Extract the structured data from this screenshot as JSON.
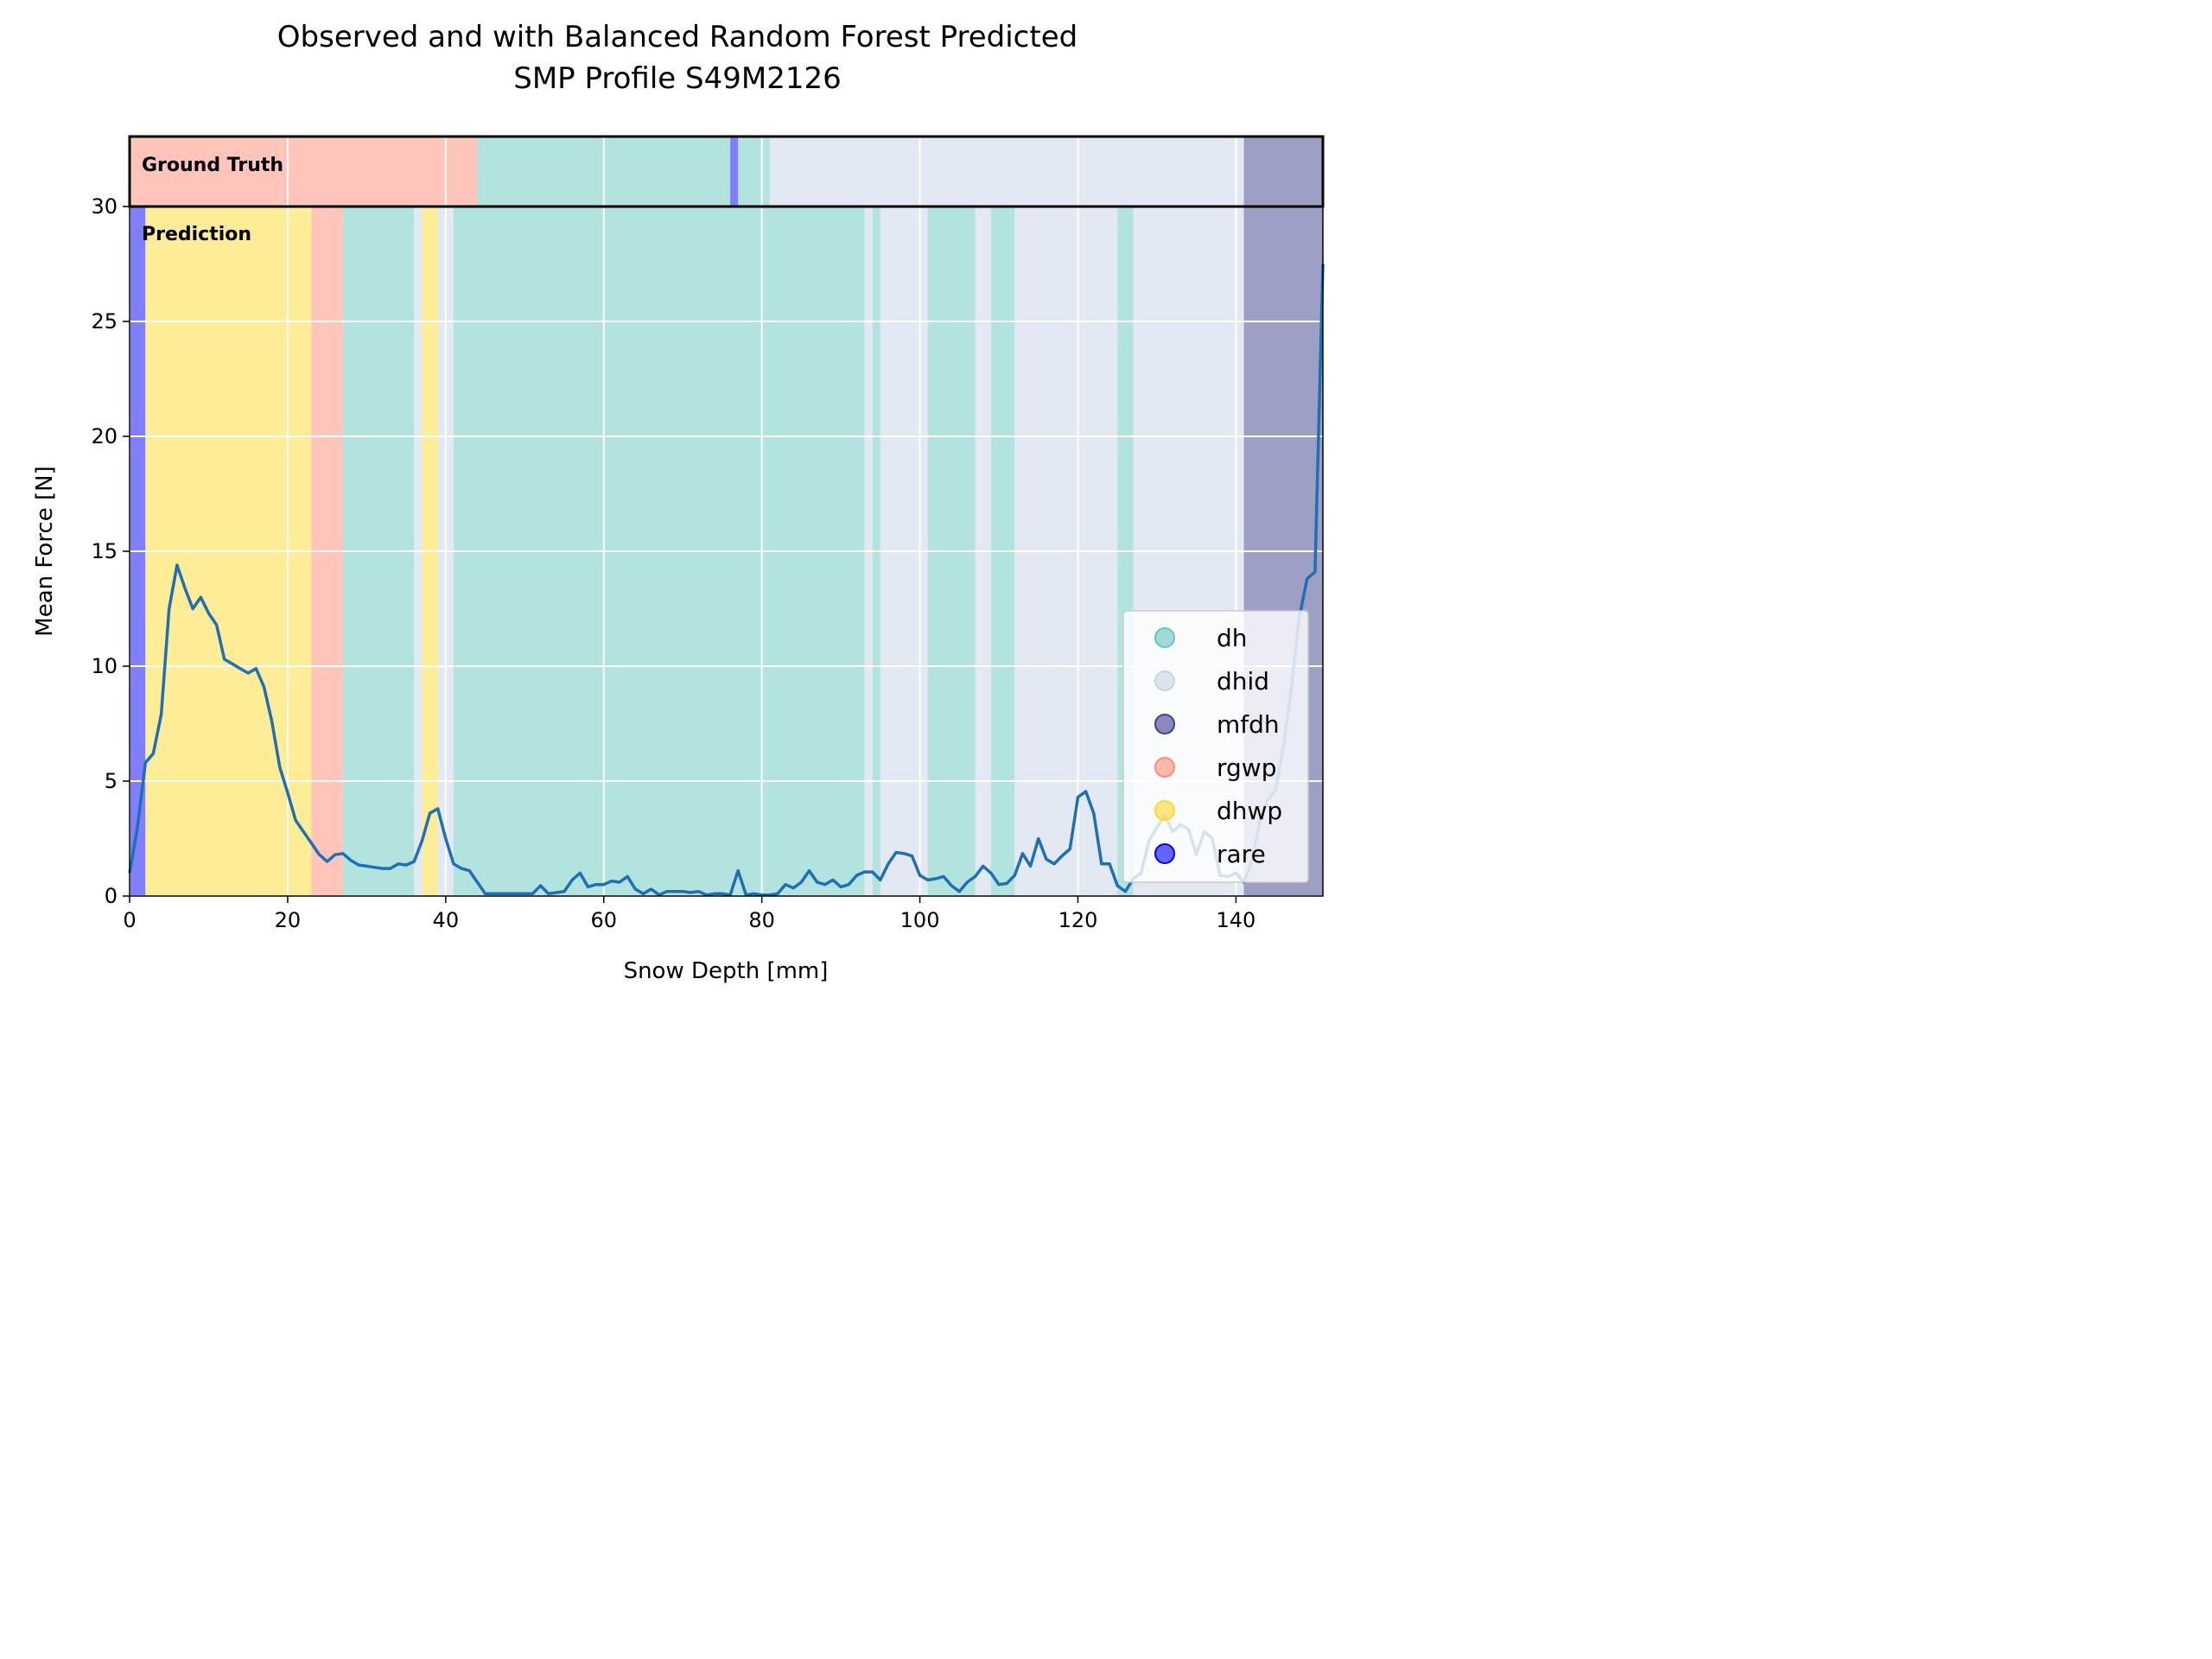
{
  "chart_data": {
    "type": "line",
    "title_line1": "Observed and with Balanced Random Forest Predicted",
    "title_line2": "SMP Profile S49M2126",
    "xlabel": "Snow Depth [mm]",
    "ylabel": "Mean Force [N]",
    "xlim": [
      0,
      151
    ],
    "ylim": [
      0,
      30
    ],
    "xticks": [
      0,
      20,
      40,
      60,
      80,
      100,
      120,
      140
    ],
    "yticks": [
      0,
      5,
      10,
      15,
      20,
      25,
      30
    ],
    "grid": true,
    "ground_truth_label": "Ground Truth",
    "prediction_label": "Prediction",
    "classes": [
      {
        "name": "dh",
        "color": "#66c7be"
      },
      {
        "name": "dhid",
        "color": "#c6d4e6"
      },
      {
        "name": "mfdh",
        "color": "#3d3f8c"
      },
      {
        "name": "rgwp",
        "color": "#ff8c78"
      },
      {
        "name": "dhwp",
        "color": "#ffd92f"
      },
      {
        "name": "rare",
        "color": "#0000ff"
      }
    ],
    "legend": {
      "position": "lower-right",
      "entries": [
        "dh",
        "dhid",
        "mfdh",
        "rgwp",
        "dhwp",
        "rare"
      ]
    },
    "ground_truth_segments": [
      {
        "start": 0,
        "end": 44,
        "class": "rgwp"
      },
      {
        "start": 44,
        "end": 76,
        "class": "dh"
      },
      {
        "start": 76,
        "end": 77,
        "class": "rare"
      },
      {
        "start": 77,
        "end": 81,
        "class": "dh"
      },
      {
        "start": 81,
        "end": 141,
        "class": "dhid"
      },
      {
        "start": 141,
        "end": 151,
        "class": "mfdh"
      }
    ],
    "prediction_segments": [
      {
        "start": 0,
        "end": 2,
        "class": "rare"
      },
      {
        "start": 2,
        "end": 23,
        "class": "dhwp"
      },
      {
        "start": 23,
        "end": 27,
        "class": "rgwp"
      },
      {
        "start": 27,
        "end": 36,
        "class": "dh"
      },
      {
        "start": 36,
        "end": 37,
        "class": "dhid"
      },
      {
        "start": 37,
        "end": 39,
        "class": "dhwp"
      },
      {
        "start": 39,
        "end": 41,
        "class": "dhid"
      },
      {
        "start": 41,
        "end": 93,
        "class": "dh"
      },
      {
        "start": 93,
        "end": 94,
        "class": "dhid"
      },
      {
        "start": 94,
        "end": 95,
        "class": "dh"
      },
      {
        "start": 95,
        "end": 101,
        "class": "dhid"
      },
      {
        "start": 101,
        "end": 107,
        "class": "dh"
      },
      {
        "start": 107,
        "end": 109,
        "class": "dhid"
      },
      {
        "start": 109,
        "end": 112,
        "class": "dh"
      },
      {
        "start": 112,
        "end": 125,
        "class": "dhid"
      },
      {
        "start": 125,
        "end": 127,
        "class": "dh"
      },
      {
        "start": 127,
        "end": 141,
        "class": "dhid"
      },
      {
        "start": 141,
        "end": 151,
        "class": "mfdh"
      }
    ],
    "series": [
      {
        "color": "#1f6fb4",
        "points": [
          [
            0,
            1.0
          ],
          [
            1,
            3.0
          ],
          [
            2,
            5.8
          ],
          [
            3,
            6.2
          ],
          [
            4,
            7.9
          ],
          [
            5,
            12.5
          ],
          [
            6,
            14.4
          ],
          [
            7,
            13.4
          ],
          [
            8,
            12.5
          ],
          [
            9,
            13.0
          ],
          [
            10,
            12.3
          ],
          [
            11,
            11.8
          ],
          [
            12,
            10.3
          ],
          [
            13,
            10.1
          ],
          [
            14,
            9.9
          ],
          [
            15,
            9.7
          ],
          [
            16,
            9.9
          ],
          [
            17,
            9.1
          ],
          [
            18,
            7.6
          ],
          [
            19,
            5.6
          ],
          [
            20,
            4.5
          ],
          [
            21,
            3.3
          ],
          [
            22,
            2.8
          ],
          [
            23,
            2.3
          ],
          [
            24,
            1.8
          ],
          [
            25,
            1.5
          ],
          [
            26,
            1.8
          ],
          [
            27,
            1.85
          ],
          [
            28,
            1.55
          ],
          [
            29,
            1.35
          ],
          [
            30,
            1.3
          ],
          [
            31,
            1.25
          ],
          [
            32,
            1.2
          ],
          [
            33,
            1.2
          ],
          [
            34,
            1.4
          ],
          [
            35,
            1.35
          ],
          [
            36,
            1.5
          ],
          [
            37,
            2.4
          ],
          [
            38,
            3.6
          ],
          [
            39,
            3.8
          ],
          [
            40,
            2.5
          ],
          [
            41,
            1.4
          ],
          [
            42,
            1.2
          ],
          [
            43,
            1.1
          ],
          [
            44,
            0.6
          ],
          [
            45,
            0.1
          ],
          [
            46,
            0.1
          ],
          [
            47,
            0.1
          ],
          [
            48,
            0.1
          ],
          [
            49,
            0.1
          ],
          [
            50,
            0.1
          ],
          [
            51,
            0.1
          ],
          [
            52,
            0.45
          ],
          [
            53,
            0.1
          ],
          [
            54,
            0.15
          ],
          [
            55,
            0.2
          ],
          [
            56,
            0.7
          ],
          [
            57,
            1.0
          ],
          [
            58,
            0.4
          ],
          [
            59,
            0.5
          ],
          [
            60,
            0.5
          ],
          [
            61,
            0.65
          ],
          [
            62,
            0.6
          ],
          [
            63,
            0.85
          ],
          [
            64,
            0.3
          ],
          [
            65,
            0.1
          ],
          [
            66,
            0.3
          ],
          [
            67,
            0.05
          ],
          [
            68,
            0.2
          ],
          [
            69,
            0.2
          ],
          [
            70,
            0.2
          ],
          [
            71,
            0.15
          ],
          [
            72,
            0.2
          ],
          [
            73,
            0.05
          ],
          [
            74,
            0.1
          ],
          [
            75,
            0.1
          ],
          [
            76,
            0.05
          ],
          [
            77,
            1.1
          ],
          [
            78,
            0.05
          ],
          [
            79,
            0.1
          ],
          [
            80,
            0.05
          ],
          [
            81,
            0.05
          ],
          [
            82,
            0.1
          ],
          [
            83,
            0.5
          ],
          [
            84,
            0.35
          ],
          [
            85,
            0.6
          ],
          [
            86,
            1.1
          ],
          [
            87,
            0.6
          ],
          [
            88,
            0.5
          ],
          [
            89,
            0.7
          ],
          [
            90,
            0.4
          ],
          [
            91,
            0.5
          ],
          [
            92,
            0.9
          ],
          [
            93,
            1.05
          ],
          [
            94,
            1.05
          ],
          [
            95,
            0.7
          ],
          [
            96,
            1.4
          ],
          [
            97,
            1.9
          ],
          [
            98,
            1.85
          ],
          [
            99,
            1.75
          ],
          [
            100,
            0.9
          ],
          [
            101,
            0.7
          ],
          [
            102,
            0.75
          ],
          [
            103,
            0.85
          ],
          [
            104,
            0.45
          ],
          [
            105,
            0.2
          ],
          [
            106,
            0.6
          ],
          [
            107,
            0.85
          ],
          [
            108,
            1.3
          ],
          [
            109,
            1.0
          ],
          [
            110,
            0.5
          ],
          [
            111,
            0.55
          ],
          [
            112,
            0.9
          ],
          [
            113,
            1.85
          ],
          [
            114,
            1.3
          ],
          [
            115,
            2.5
          ],
          [
            116,
            1.6
          ],
          [
            117,
            1.4
          ],
          [
            118,
            1.75
          ],
          [
            119,
            2.05
          ],
          [
            120,
            4.3
          ],
          [
            121,
            4.55
          ],
          [
            122,
            3.6
          ],
          [
            123,
            1.4
          ],
          [
            124,
            1.4
          ],
          [
            125,
            0.45
          ],
          [
            126,
            0.2
          ],
          [
            127,
            0.75
          ],
          [
            128,
            1.0
          ],
          [
            129,
            2.4
          ],
          [
            130,
            3.0
          ],
          [
            131,
            3.5
          ],
          [
            132,
            2.8
          ],
          [
            133,
            3.1
          ],
          [
            134,
            2.9
          ],
          [
            135,
            1.8
          ],
          [
            136,
            2.8
          ],
          [
            137,
            2.5
          ],
          [
            138,
            0.9
          ],
          [
            139,
            0.85
          ],
          [
            140,
            1.0
          ],
          [
            141,
            0.6
          ],
          [
            142,
            1.5
          ],
          [
            143,
            3.2
          ],
          [
            144,
            4.2
          ],
          [
            145,
            4.6
          ],
          [
            146,
            6.5
          ],
          [
            147,
            9.0
          ],
          [
            148,
            12.1
          ],
          [
            149,
            13.8
          ],
          [
            150,
            14.1
          ],
          [
            151,
            27.5
          ]
        ]
      }
    ]
  }
}
